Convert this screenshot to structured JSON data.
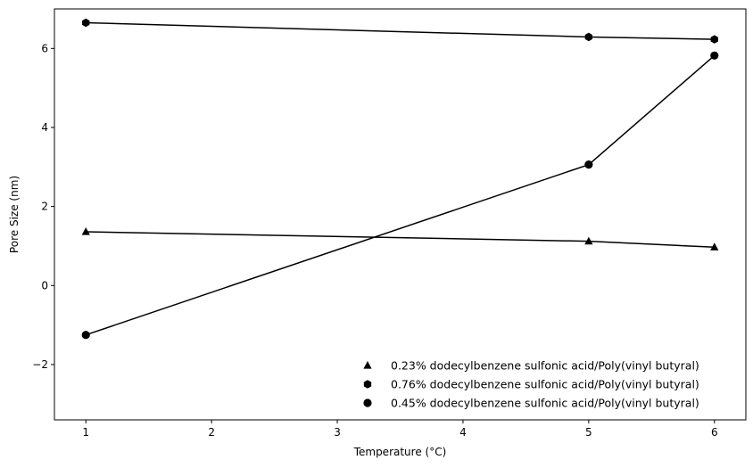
{
  "chart_data": {
    "type": "line",
    "xlabel": "Temperature (°C)",
    "ylabel": "Pore Size (nm)",
    "xlim": [
      0.75,
      6.25
    ],
    "ylim": [
      -3.4,
      7.0
    ],
    "x_ticks": [
      1,
      2,
      3,
      4,
      5,
      6
    ],
    "x_tick_labels": [
      "1",
      "2",
      "3",
      "4",
      "5",
      "6"
    ],
    "y_ticks": [
      -2,
      0,
      2,
      4,
      6
    ],
    "y_tick_labels": [
      "−2",
      "0",
      "2",
      "4",
      "6"
    ],
    "grid": false,
    "legend_position": "lower-right",
    "series": [
      {
        "name": "0.23% dodecylbenzene sulfonic acid/Poly(vinyl butyral)",
        "marker": "triangle",
        "color": "#000000",
        "x": [
          1,
          5,
          6
        ],
        "y": [
          1.36,
          1.12,
          0.97
        ]
      },
      {
        "name": "0.76% dodecylbenzene sulfonic acid/Poly(vinyl butyral)",
        "marker": "hexagon",
        "color": "#000000",
        "x": [
          1,
          5,
          6
        ],
        "y": [
          6.65,
          6.29,
          6.23
        ]
      },
      {
        "name": "0.45% dodecylbenzene sulfonic acid/Poly(vinyl butyral)",
        "marker": "circle",
        "color": "#000000",
        "x": [
          1,
          5,
          6
        ],
        "y": [
          -1.25,
          3.06,
          5.82
        ]
      }
    ]
  }
}
